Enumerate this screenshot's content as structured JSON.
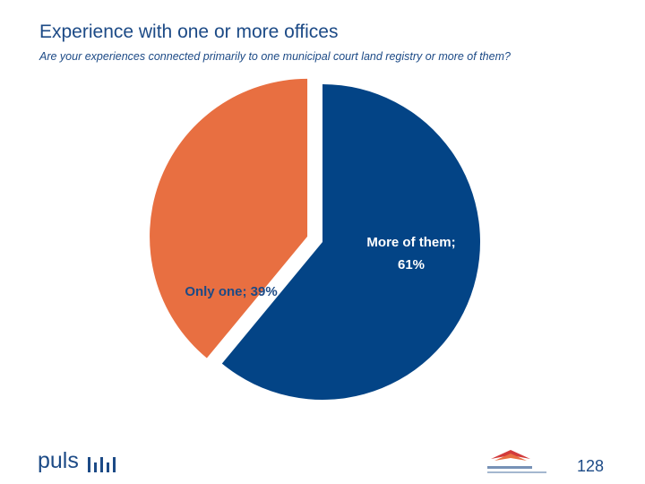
{
  "slide": {
    "title": "Experience with one or more offices",
    "subtitle": "Are your experiences connected primarily to one municipal court land registry or more of them?",
    "logo_text": "puls",
    "page_number": "128"
  },
  "colors": {
    "more": "#034486",
    "one": "#e86f41",
    "text": "#1c4a86",
    "label_more": "#ffffff",
    "label_one": "#1c4a86"
  },
  "chart_data": {
    "type": "pie",
    "title": "",
    "slices": [
      {
        "label": "More of them",
        "value": 61,
        "display": "More of them;",
        "display_pct": "61%",
        "color": "#034486"
      },
      {
        "label": "Only one",
        "value": 39,
        "display": "Only one; 39%",
        "color": "#e86f41"
      }
    ],
    "start_angle": "12 o'clock",
    "direction": "clockwise",
    "exploded": "Only one",
    "legend": "none"
  }
}
